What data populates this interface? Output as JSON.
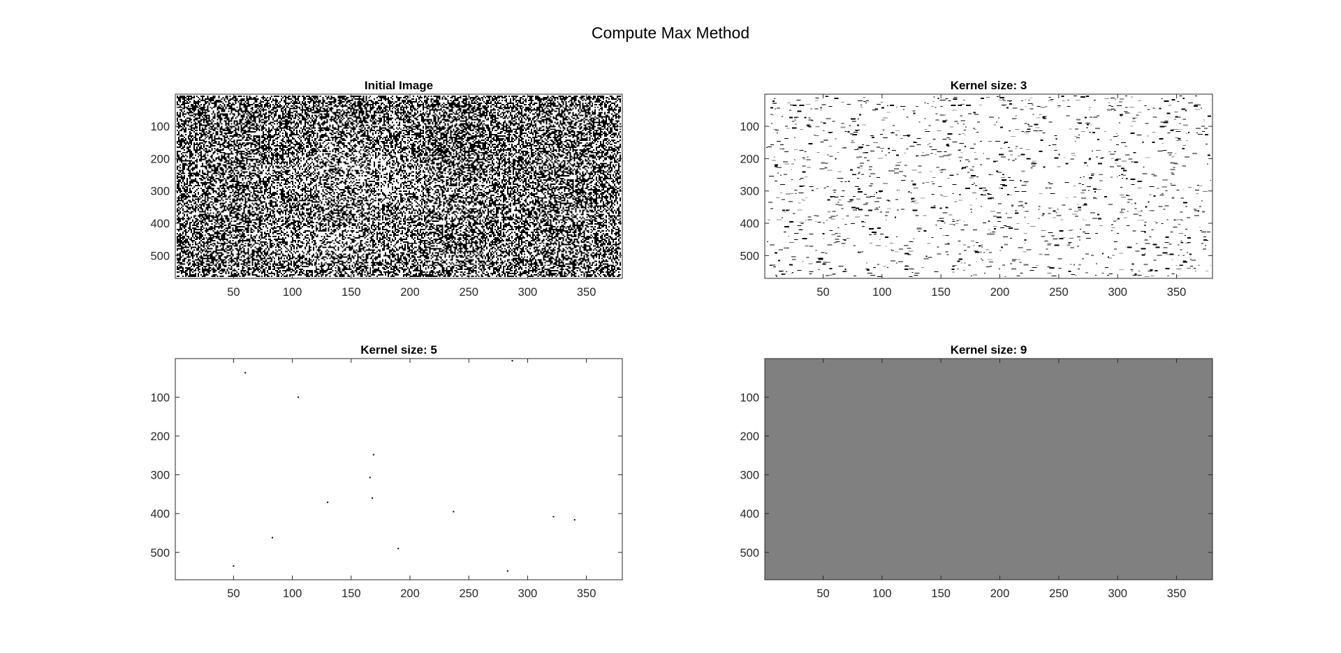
{
  "figure": {
    "title": "Compute Max Method"
  },
  "chart_data": [
    {
      "type": "heatmap",
      "title": "Initial Image",
      "colormap": "gray",
      "appearance": "dense binary black/white noise covering the whole image with faint lighter patches",
      "xlim": [
        0.5,
        380.5
      ],
      "ylim": [
        0.5,
        570.5
      ],
      "y_reversed": true,
      "xticks": [
        50,
        100,
        150,
        200,
        250,
        300,
        350
      ],
      "yticks": [
        100,
        200,
        300,
        400,
        500
      ],
      "xlabel": "",
      "ylabel": ""
    },
    {
      "type": "heatmap",
      "title": "Kernel size: 3",
      "colormap": "gray",
      "appearance": "mostly white with scattered short black and gray horizontal dashes",
      "xlim": [
        0.5,
        380.5
      ],
      "ylim": [
        0.5,
        570.5
      ],
      "y_reversed": true,
      "xticks": [
        50,
        100,
        150,
        200,
        250,
        300,
        350
      ],
      "yticks": [
        100,
        200,
        300,
        400,
        500
      ],
      "xlabel": "",
      "ylabel": ""
    },
    {
      "type": "heatmap",
      "title": "Kernel size: 5",
      "colormap": "gray",
      "appearance": "white with a few isolated dark pixels",
      "dark_pixels": [
        {
          "x": 60,
          "y": 37
        },
        {
          "x": 105,
          "y": 100
        },
        {
          "x": 287,
          "y": 6
        },
        {
          "x": 169,
          "y": 248
        },
        {
          "x": 166,
          "y": 307
        },
        {
          "x": 168,
          "y": 360
        },
        {
          "x": 130,
          "y": 371
        },
        {
          "x": 237,
          "y": 395
        },
        {
          "x": 322,
          "y": 408
        },
        {
          "x": 340,
          "y": 416
        },
        {
          "x": 83,
          "y": 462
        },
        {
          "x": 190,
          "y": 490
        },
        {
          "x": 50,
          "y": 535
        },
        {
          "x": 283,
          "y": 548
        }
      ],
      "xlim": [
        0.5,
        380.5
      ],
      "ylim": [
        0.5,
        570.5
      ],
      "y_reversed": true,
      "xticks": [
        50,
        100,
        150,
        200,
        250,
        300,
        350
      ],
      "yticks": [
        100,
        200,
        300,
        400,
        500
      ],
      "xlabel": "",
      "ylabel": ""
    },
    {
      "type": "heatmap",
      "title": "Kernel size: 9",
      "colormap": "gray",
      "appearance": "uniform gray",
      "fill_color": "#808080",
      "xlim": [
        0.5,
        380.5
      ],
      "ylim": [
        0.5,
        570.5
      ],
      "y_reversed": true,
      "xticks": [
        50,
        100,
        150,
        200,
        250,
        300,
        350
      ],
      "yticks": [
        100,
        200,
        300,
        400,
        500
      ],
      "xlabel": "",
      "ylabel": ""
    }
  ]
}
